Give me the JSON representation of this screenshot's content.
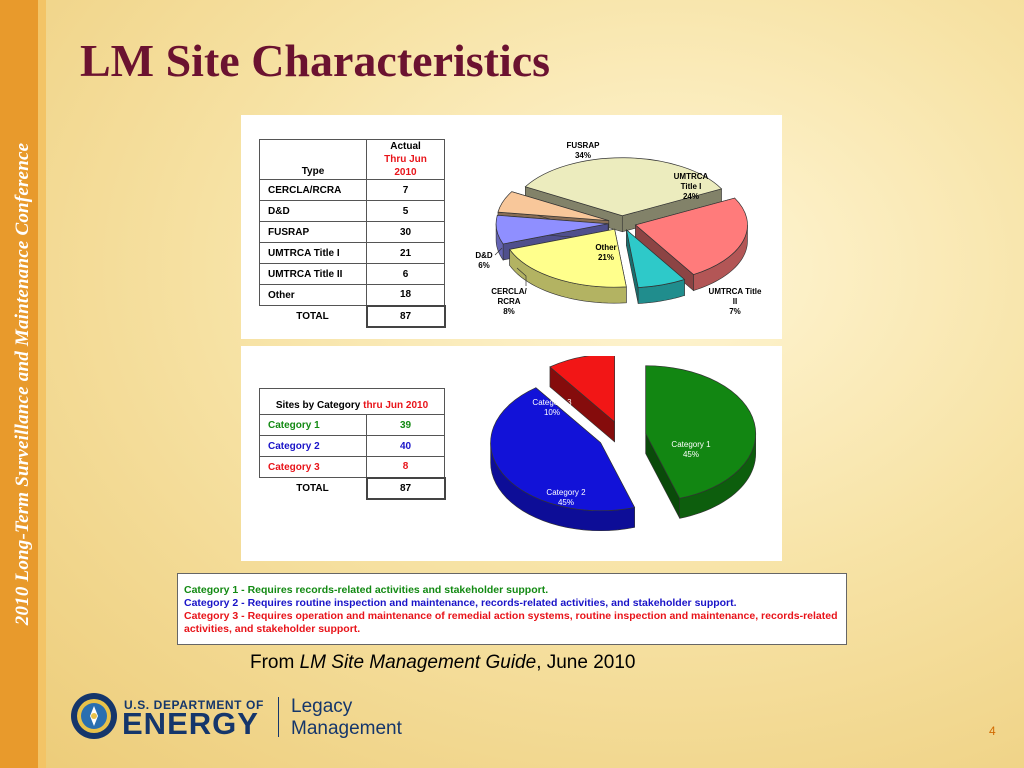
{
  "vertical_title": "2010 Long-Term Surveillance and Maintenance Conference",
  "title": "LM Site Characteristics",
  "type_table": {
    "col1_header": "Type",
    "col2_header_line1": "Actual",
    "col2_header_line2": "Thru Jun 2010",
    "rows": [
      {
        "label": "CERCLA/RCRA",
        "value": "7"
      },
      {
        "label": "D&D",
        "value": "5"
      },
      {
        "label": "FUSRAP",
        "value": "30"
      },
      {
        "label": "UMTRCA Title I",
        "value": "21"
      },
      {
        "label": "UMTRCA Title II",
        "value": "6"
      },
      {
        "label": "Other",
        "value": "18"
      }
    ],
    "total_label": "TOTAL",
    "total_value": "87"
  },
  "category_table": {
    "header_prefix": "Sites by Category ",
    "header_suffix": "thru Jun 2010",
    "rows": [
      {
        "label": "Category 1",
        "value": "39"
      },
      {
        "label": "Category 2",
        "value": "40"
      },
      {
        "label": "Category 3",
        "value": "8"
      }
    ],
    "total_label": "TOTAL",
    "total_value": "87"
  },
  "chart_data": [
    {
      "type": "pie",
      "title": "",
      "slices": [
        {
          "label": "FUSRAP",
          "pct": 34,
          "label_text": "34%",
          "color": "#ececbe"
        },
        {
          "label": "UMTRCA Title I",
          "pct": 24,
          "label_text": "24%",
          "color": "#ff7b7b"
        },
        {
          "label": "UMTRCA Title II",
          "pct": 7,
          "label_text": "7%",
          "color": "#2ec9c9"
        },
        {
          "label": "Other",
          "pct": 21,
          "label_text": "21%",
          "color": "#ffff8c"
        },
        {
          "label": "CERCLA/ RCRA",
          "pct": 8,
          "label_text": "8%",
          "color": "#8f8fff"
        },
        {
          "label": "D&D",
          "pct": 6,
          "label_text": "6%",
          "color": "#f8c79a"
        }
      ]
    },
    {
      "type": "pie",
      "title": "",
      "slices": [
        {
          "label": "Category 1",
          "pct": 45,
          "label_text": "45%",
          "color": "#128612"
        },
        {
          "label": "Category 2",
          "pct": 45,
          "label_text": "45%",
          "color": "#1212d8"
        },
        {
          "label": "Category 3",
          "pct": 10,
          "label_text": "10%",
          "color": "#f21616"
        }
      ]
    }
  ],
  "notes": [
    {
      "text": "Category 1 - Requires records-related activities and stakeholder support.",
      "color": "#138a13"
    },
    {
      "text": "Category 2 - Requires routine inspection and maintenance, records-related activities, and stakeholder support.",
      "color": "#1a14c8"
    },
    {
      "text": "Category 3 - Requires operation and maintenance of remedial action systems, routine inspection and maintenance, records-related activities, and stakeholder support.",
      "color": "#e8141a"
    }
  ],
  "source": {
    "prefix": "From ",
    "italic": "LM Site Management Guide",
    "suffix": ", June 2010"
  },
  "logo": {
    "line1": "U.S. DEPARTMENT OF",
    "line2": "ENERGY",
    "lm1": "Legacy",
    "lm2": "Management",
    "seal_icon": "doe-seal-icon"
  },
  "page_number": "4"
}
